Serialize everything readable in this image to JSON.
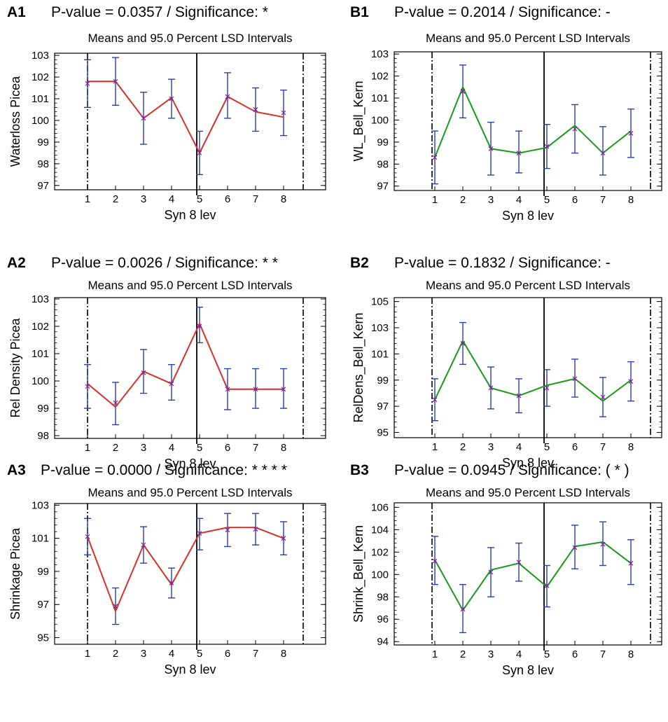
{
  "chart_data": [
    {
      "panel": "A1",
      "type": "line",
      "pvalue_text": "P-value = 0.0357  /  Significance: *",
      "title": "Means and 95.0 Percent LSD Intervals",
      "xlabel": "Syn 8 lev",
      "ylabel": "Waterloss Picea",
      "categories": [
        "1",
        "2",
        "3",
        "4",
        "5",
        "6",
        "7",
        "8"
      ],
      "ylim": [
        96.8,
        103.1
      ],
      "yticks": [
        "97",
        "98",
        "99",
        "100",
        "101",
        "102",
        "103"
      ],
      "ytick_values": [
        97,
        98,
        99,
        100,
        101,
        102,
        103
      ],
      "line_color": "#d73027",
      "line_values": [
        101.8,
        101.8,
        100.1,
        101.05,
        98.5,
        101.1,
        100.4,
        100.15
      ],
      "means": [
        101.7,
        101.8,
        100.1,
        101.0,
        98.5,
        101.1,
        100.5,
        100.35
      ],
      "ci_low": [
        100.6,
        100.7,
        98.9,
        100.1,
        97.5,
        100.1,
        99.5,
        99.3
      ],
      "ci_high": [
        102.8,
        102.9,
        101.3,
        101.9,
        99.5,
        102.2,
        101.5,
        101.4
      ],
      "divider_x": 4.9,
      "dashdot_x": [
        1.0,
        8.7
      ]
    },
    {
      "panel": "B1",
      "type": "line",
      "pvalue_text": "P-value = 0.2014  /  Significance: -",
      "title": "Means and 95.0 Percent LSD Intervals",
      "xlabel": "Syn 8 lev",
      "ylabel": "WL_Bell_Kern",
      "categories": [
        "1",
        "2",
        "3",
        "4",
        "5",
        "6",
        "7",
        "8"
      ],
      "ylim": [
        96.8,
        103.1
      ],
      "yticks": [
        "97",
        "98",
        "99",
        "100",
        "101",
        "102",
        "103"
      ],
      "ytick_values": [
        97,
        98,
        99,
        100,
        101,
        102,
        103
      ],
      "line_color": "#1a9a1a",
      "line_values": [
        98.3,
        101.5,
        98.7,
        98.5,
        98.75,
        99.75,
        98.5,
        99.5
      ],
      "means": [
        98.3,
        101.3,
        98.7,
        98.5,
        98.8,
        99.6,
        98.5,
        99.4
      ],
      "ci_low": [
        97.1,
        100.1,
        97.5,
        97.6,
        97.8,
        98.5,
        97.5,
        98.3
      ],
      "ci_high": [
        99.5,
        102.5,
        99.9,
        99.5,
        99.8,
        100.7,
        99.7,
        100.5
      ],
      "divider_x": 4.9,
      "dashdot_x": [
        0.9,
        8.7
      ]
    },
    {
      "panel": "A2",
      "type": "line",
      "pvalue_text": "P-value = 0.0026  /  Significance: * *",
      "title": "Means and 95.0 Percent LSD Intervals",
      "xlabel": "Syn 8 lev",
      "ylabel": "Rel Density Picea",
      "categories": [
        "1",
        "2",
        "3",
        "4",
        "5",
        "6",
        "7",
        "8"
      ],
      "ylim": [
        97.9,
        103.05
      ],
      "yticks": [
        "98",
        "99",
        "100",
        "101",
        "102",
        "103"
      ],
      "ytick_values": [
        98,
        99,
        100,
        101,
        102,
        103
      ],
      "line_color": "#d73027",
      "line_values": [
        99.9,
        99.05,
        100.35,
        99.9,
        102.1,
        99.7,
        99.7,
        99.7
      ],
      "means": [
        99.8,
        99.2,
        100.3,
        99.9,
        102.0,
        99.7,
        99.7,
        99.7
      ],
      "ci_low": [
        99.0,
        98.4,
        99.55,
        99.3,
        101.4,
        98.95,
        99.0,
        99.0
      ],
      "ci_high": [
        100.6,
        99.95,
        101.15,
        100.6,
        102.7,
        100.45,
        100.45,
        100.45
      ],
      "divider_x": 4.9,
      "dashdot_x": [
        1.0,
        8.7
      ]
    },
    {
      "panel": "B2",
      "type": "line",
      "pvalue_text": "P-value = 0.1832  /  Significance: -",
      "title": "Means and 95.0 Percent LSD Intervals",
      "xlabel": "Syn 8 lev",
      "ylabel": "RelDens_Bell_Kern",
      "categories": [
        "1",
        "2",
        "3",
        "4",
        "5",
        "6",
        "7",
        "8"
      ],
      "ylim": [
        94.6,
        105.3
      ],
      "yticks": [
        "95",
        "97",
        "99",
        "101",
        "103",
        "105"
      ],
      "ytick_values": [
        95,
        97,
        99,
        101,
        103,
        105
      ],
      "line_color": "#1a9a1a",
      "line_values": [
        97.5,
        102.0,
        98.4,
        97.8,
        98.6,
        99.1,
        97.4,
        99.0
      ],
      "means": [
        97.5,
        101.8,
        98.4,
        97.8,
        98.4,
        99.1,
        97.7,
        98.9
      ],
      "ci_low": [
        95.9,
        100.2,
        96.8,
        96.5,
        97.0,
        97.7,
        96.2,
        97.4
      ],
      "ci_high": [
        99.1,
        103.4,
        100.0,
        99.1,
        99.8,
        100.6,
        99.2,
        100.4
      ],
      "divider_x": 4.9,
      "dashdot_x": [
        0.9,
        8.7
      ]
    },
    {
      "panel": "A3",
      "type": "line",
      "pvalue_text": "P-value = 0.0000  /  Significance: * * * *",
      "title": "Means and 95.0 Percent LSD Intervals",
      "xlabel": "Syn 8 lev",
      "ylabel": "Shrinkage Picea",
      "categories": [
        "1",
        "2",
        "3",
        "4",
        "5",
        "6",
        "7",
        "8"
      ],
      "ylim": [
        94.6,
        103.1
      ],
      "yticks": [
        "95",
        "97",
        "99",
        "101",
        "103"
      ],
      "ytick_values": [
        95,
        97,
        99,
        101,
        103
      ],
      "line_color": "#d73027",
      "line_values": [
        101.1,
        96.6,
        100.6,
        98.2,
        101.3,
        101.65,
        101.65,
        101.0
      ],
      "means": [
        101.1,
        96.9,
        100.6,
        98.3,
        101.3,
        101.5,
        101.55,
        101.0
      ],
      "ci_low": [
        100.0,
        95.8,
        99.5,
        97.4,
        100.3,
        100.5,
        100.6,
        100.0
      ],
      "ci_high": [
        102.2,
        98.0,
        101.7,
        99.2,
        102.2,
        102.5,
        102.5,
        102.0
      ],
      "divider_x": 4.9,
      "dashdot_x": [
        1.0,
        8.7
      ]
    },
    {
      "panel": "B3",
      "type": "line",
      "pvalue_text": "P-value = 0.0945  /  Significance: ( * )",
      "title": "Means and 95.0 Percent LSD Intervals",
      "xlabel": "Syn 8 lev",
      "ylabel": "Shrink_Bell_Kern",
      "categories": [
        "1",
        "2",
        "3",
        "4",
        "5",
        "6",
        "7",
        "8"
      ],
      "ylim": [
        93.7,
        106.4
      ],
      "yticks": [
        "94",
        "96",
        "98",
        "100",
        "102",
        "104",
        "106"
      ],
      "ytick_values": [
        94,
        96,
        98,
        100,
        102,
        104,
        106
      ],
      "line_color": "#1a9a1a",
      "line_values": [
        101.3,
        96.8,
        100.4,
        101.0,
        98.9,
        102.5,
        102.9,
        101.0
      ],
      "means": [
        101.2,
        96.9,
        100.2,
        101.1,
        99.0,
        102.4,
        102.7,
        101.0
      ],
      "ci_low": [
        99.1,
        94.8,
        98.0,
        99.4,
        97.1,
        100.5,
        100.8,
        99.1
      ],
      "ci_high": [
        103.4,
        99.1,
        102.4,
        102.8,
        100.8,
        104.4,
        104.7,
        103.1
      ],
      "divider_x": 4.9,
      "dashdot_x": [
        0.9,
        8.7
      ]
    }
  ],
  "colors": {
    "ci_bar": "#2b3faa",
    "mean_marker": "#7a2a9a",
    "frame": "#000000"
  }
}
